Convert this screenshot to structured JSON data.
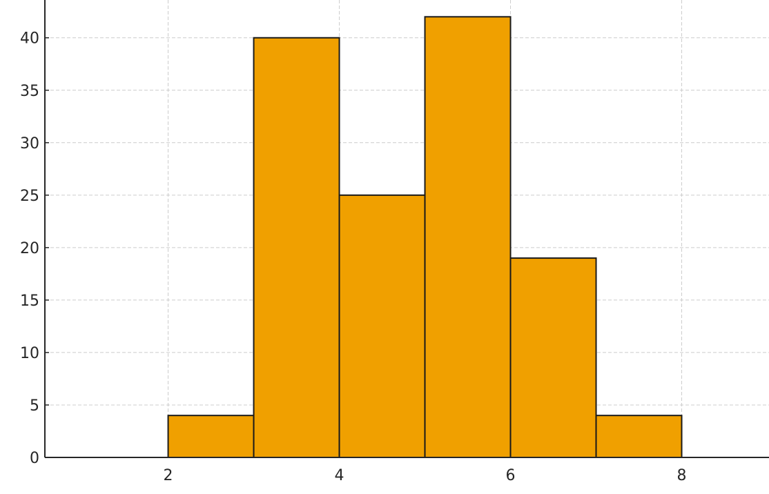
{
  "chart_data": {
    "type": "bar",
    "subtype": "histogram",
    "title": "",
    "xlabel": "",
    "ylabel": "",
    "bins": [
      [
        2,
        3
      ],
      [
        3,
        4
      ],
      [
        4,
        5
      ],
      [
        5,
        6
      ],
      [
        6,
        7
      ],
      [
        7,
        8
      ]
    ],
    "values": [
      4,
      40,
      25,
      42,
      19,
      4
    ],
    "xlim": [
      0.56,
      9.02
    ],
    "ylim": [
      0,
      43.6
    ],
    "x_ticks": [
      2,
      4,
      6,
      8
    ],
    "y_ticks": [
      0,
      5,
      10,
      15,
      20,
      25,
      30,
      35,
      40
    ],
    "x_tick_labels": [
      "2",
      "4",
      "6",
      "8"
    ],
    "y_tick_labels": [
      "0",
      "5",
      "10",
      "15",
      "20",
      "25",
      "30",
      "35",
      "40"
    ],
    "grid": true,
    "bar_color": "#f0a000",
    "edge_color": "#1a1a1a"
  }
}
